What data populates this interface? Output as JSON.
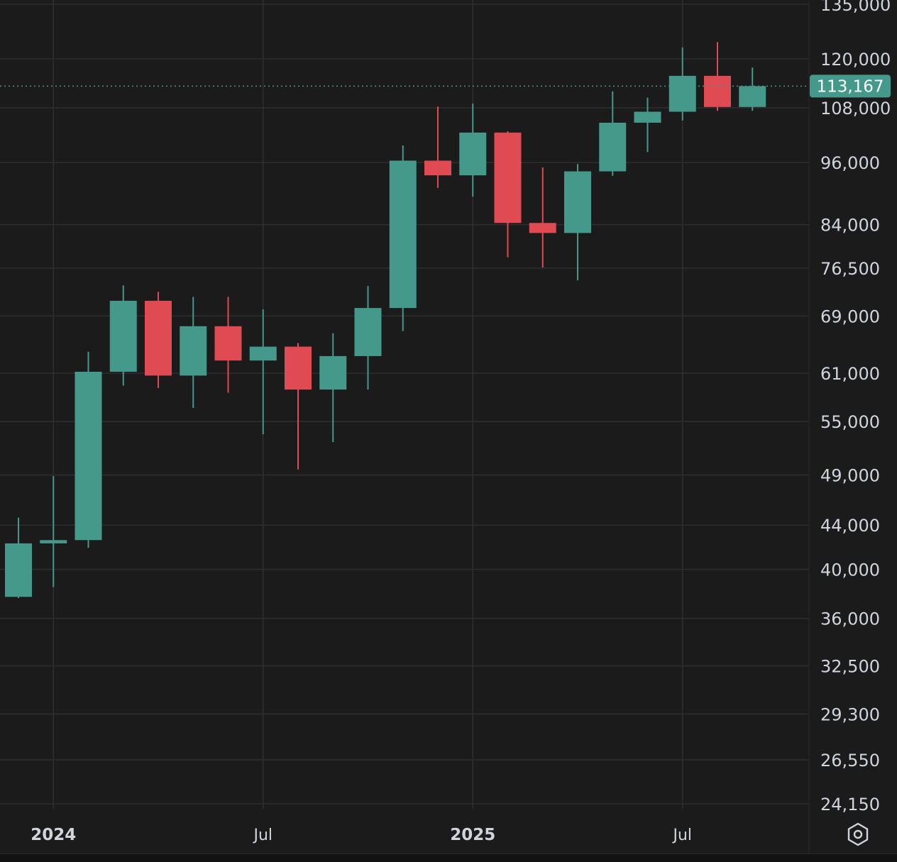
{
  "chart_data": {
    "type": "candlestick",
    "interval": "monthly",
    "y_scale": "log",
    "ylim": [
      23500,
      136000
    ],
    "grid": true,
    "y_ticks": [
      {
        "value": 135000,
        "label": "135,000"
      },
      {
        "value": 120000,
        "label": "120,000"
      },
      {
        "value": 108000,
        "label": "108,000"
      },
      {
        "value": 96000,
        "label": "96,000"
      },
      {
        "value": 84000,
        "label": "84,000"
      },
      {
        "value": 76500,
        "label": "76,500"
      },
      {
        "value": 69000,
        "label": "69,000"
      },
      {
        "value": 61000,
        "label": "61,000"
      },
      {
        "value": 55000,
        "label": "55,000"
      },
      {
        "value": 49000,
        "label": "49,000"
      },
      {
        "value": 44000,
        "label": "44,000"
      },
      {
        "value": 40000,
        "label": "40,000"
      },
      {
        "value": 36000,
        "label": "36,000"
      },
      {
        "value": 32500,
        "label": "32,500"
      },
      {
        "value": 29300,
        "label": "29,300"
      },
      {
        "value": 26550,
        "label": "26,550"
      },
      {
        "value": 24150,
        "label": "24,150"
      }
    ],
    "x_ticks": [
      {
        "date": "2024-01",
        "label": "2024",
        "bold": true
      },
      {
        "date": "2024-07",
        "label": "Jul",
        "bold": false
      },
      {
        "date": "2025-01",
        "label": "2025",
        "bold": true
      },
      {
        "date": "2025-07",
        "label": "Jul",
        "bold": false
      }
    ],
    "candles": [
      {
        "date": "2023-12",
        "open": 37700,
        "high": 44700,
        "low": 37600,
        "close": 42300
      },
      {
        "date": "2024-01",
        "open": 42300,
        "high": 48900,
        "low": 38500,
        "close": 42600
      },
      {
        "date": "2024-02",
        "open": 42600,
        "high": 63900,
        "low": 41900,
        "close": 61200
      },
      {
        "date": "2024-03",
        "open": 61200,
        "high": 73700,
        "low": 59400,
        "close": 71300
      },
      {
        "date": "2024-04",
        "open": 71300,
        "high": 72700,
        "low": 59100,
        "close": 60700
      },
      {
        "date": "2024-05",
        "open": 60700,
        "high": 71900,
        "low": 56600,
        "close": 67500
      },
      {
        "date": "2024-06",
        "open": 67500,
        "high": 71900,
        "low": 58500,
        "close": 62700
      },
      {
        "date": "2024-07",
        "open": 62700,
        "high": 70000,
        "low": 53500,
        "close": 64600
      },
      {
        "date": "2024-08",
        "open": 64600,
        "high": 65100,
        "low": 49600,
        "close": 58900
      },
      {
        "date": "2024-09",
        "open": 58900,
        "high": 66500,
        "low": 52600,
        "close": 63300
      },
      {
        "date": "2024-10",
        "open": 63300,
        "high": 73600,
        "low": 58900,
        "close": 70200
      },
      {
        "date": "2024-11",
        "open": 70200,
        "high": 99600,
        "low": 66800,
        "close": 96400
      },
      {
        "date": "2024-12",
        "open": 96400,
        "high": 108300,
        "low": 90900,
        "close": 93400
      },
      {
        "date": "2025-01",
        "open": 93400,
        "high": 109000,
        "low": 89200,
        "close": 102400
      },
      {
        "date": "2025-02",
        "open": 102400,
        "high": 102700,
        "low": 78300,
        "close": 84300
      },
      {
        "date": "2025-03",
        "open": 84300,
        "high": 95000,
        "low": 76600,
        "close": 82500
      },
      {
        "date": "2025-04",
        "open": 82500,
        "high": 95700,
        "low": 74500,
        "close": 94200
      },
      {
        "date": "2025-05",
        "open": 94200,
        "high": 111900,
        "low": 93300,
        "close": 104600
      },
      {
        "date": "2025-06",
        "open": 104600,
        "high": 110400,
        "low": 98200,
        "close": 107100
      },
      {
        "date": "2025-07",
        "open": 107100,
        "high": 123000,
        "low": 105100,
        "close": 115700
      },
      {
        "date": "2025-08",
        "open": 115700,
        "high": 124400,
        "low": 107300,
        "close": 108200
      },
      {
        "date": "2025-09",
        "open": 108200,
        "high": 117800,
        "low": 107300,
        "close": 113167
      }
    ],
    "last_price": {
      "value": 113167,
      "label": "113,167"
    }
  },
  "colors": {
    "background": "#1b1b1b",
    "grid": "#2e2e2e",
    "up": "#44998a",
    "down": "#e04a52",
    "text": "#d1d4dc",
    "price_tag": "#44998a"
  },
  "icons": {
    "settings": "hexagon-settings-icon"
  }
}
